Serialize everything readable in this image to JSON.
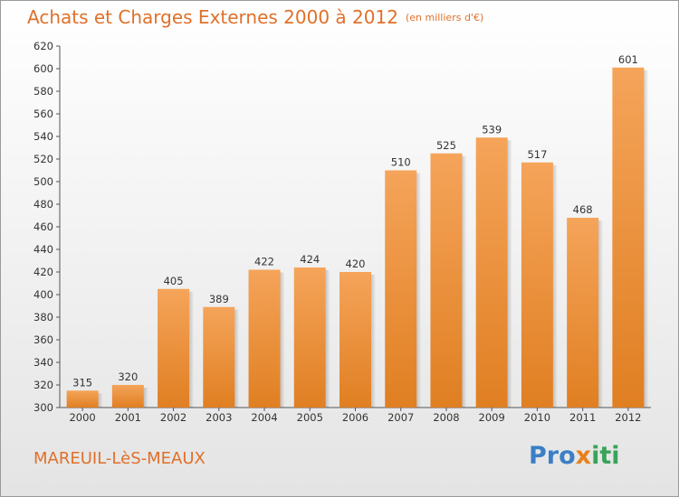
{
  "title": "Achats et Charges Externes 2000 à 2012",
  "unit_label": "(en milliers d'€)",
  "commune": "MAREUIL-LèS-MEAUX",
  "logo": {
    "part1": "Pro",
    "part2": "x",
    "part3": "iti"
  },
  "colors": {
    "bar_top": "#f5a45a",
    "bar_bottom": "#e07f22",
    "accent": "#e0702a"
  },
  "chart_data": {
    "type": "bar",
    "title": "Achats et Charges Externes 2000 à 2012",
    "ylabel": "(en milliers d'€)",
    "xlabel": "",
    "categories": [
      "2000",
      "2001",
      "2002",
      "2003",
      "2004",
      "2005",
      "2006",
      "2007",
      "2008",
      "2009",
      "2010",
      "2011",
      "2012"
    ],
    "values": [
      315,
      320,
      405,
      389,
      422,
      424,
      420,
      510,
      525,
      539,
      517,
      468,
      601
    ],
    "ylim": [
      300,
      620
    ],
    "yticks": [
      300,
      320,
      340,
      360,
      380,
      400,
      420,
      440,
      460,
      480,
      500,
      520,
      540,
      560,
      580,
      600,
      620
    ],
    "grid": false
  }
}
